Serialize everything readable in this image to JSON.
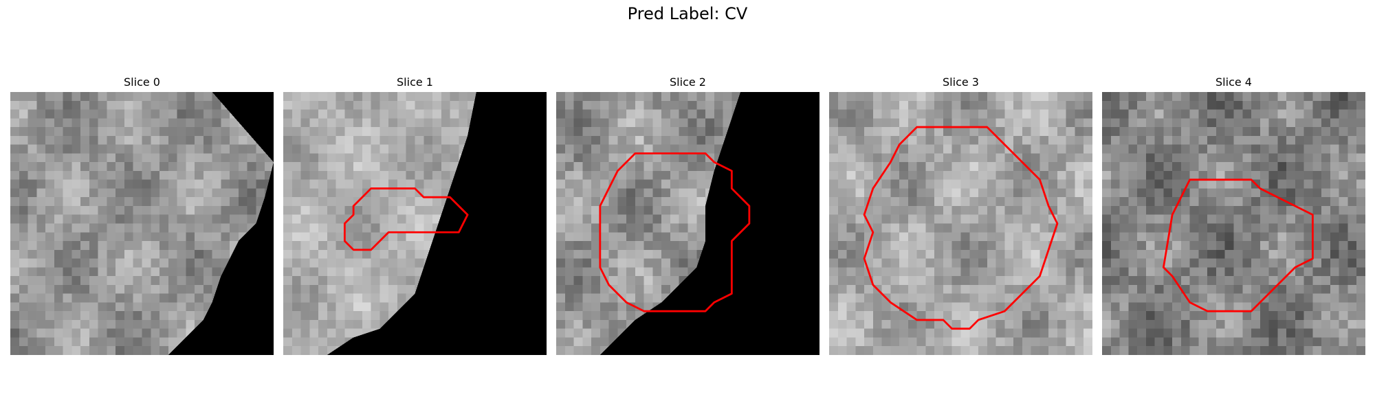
{
  "figure": {
    "title": "Pred Label: CV"
  },
  "panels": [
    {
      "title": "Slice 0",
      "texture_seed": 11,
      "brightness": 150,
      "contrast": 55,
      "black_region_image": [
        [
          23,
          0
        ],
        [
          30,
          0
        ],
        [
          30,
          30
        ],
        [
          18,
          30
        ],
        [
          20,
          28
        ],
        [
          22,
          26
        ],
        [
          23,
          24
        ],
        [
          24,
          21
        ],
        [
          25,
          19
        ],
        [
          26,
          17
        ],
        [
          28,
          15
        ],
        [
          29,
          12
        ],
        [
          30,
          8
        ]
      ],
      "contour": []
    },
    {
      "title": "Slice 1",
      "texture_seed": 23,
      "brightness": 175,
      "contrast": 45,
      "black_region_image": [
        [
          22,
          0
        ],
        [
          30,
          0
        ],
        [
          30,
          30
        ],
        [
          5,
          30
        ],
        [
          8,
          28
        ],
        [
          11,
          27
        ],
        [
          13,
          25
        ],
        [
          15,
          23
        ],
        [
          16,
          20
        ],
        [
          17,
          17
        ],
        [
          18,
          14
        ],
        [
          19,
          11
        ],
        [
          20,
          8
        ],
        [
          21,
          5
        ]
      ],
      "contour": [
        [
          10,
          11
        ],
        [
          15,
          11
        ],
        [
          16,
          12
        ],
        [
          19,
          12
        ],
        [
          20,
          13
        ],
        [
          21,
          14
        ],
        [
          20,
          16
        ],
        [
          12,
          16
        ],
        [
          11,
          17
        ],
        [
          10,
          18
        ],
        [
          8,
          18
        ],
        [
          7,
          17
        ],
        [
          7,
          15
        ],
        [
          8,
          14
        ],
        [
          8,
          13
        ],
        [
          9,
          12
        ]
      ]
    },
    {
      "title": "Slice 2",
      "texture_seed": 37,
      "brightness": 150,
      "contrast": 60,
      "black_region_image": [
        [
          21,
          0
        ],
        [
          30,
          0
        ],
        [
          30,
          30
        ],
        [
          5,
          30
        ],
        [
          7,
          28
        ],
        [
          9,
          26
        ],
        [
          12,
          24
        ],
        [
          14,
          22
        ],
        [
          16,
          20
        ],
        [
          17,
          17
        ],
        [
          17,
          13
        ],
        [
          18,
          9
        ],
        [
          19,
          6
        ],
        [
          20,
          3
        ]
      ],
      "contour": [
        [
          9,
          7
        ],
        [
          17,
          7
        ],
        [
          18,
          8
        ],
        [
          20,
          9
        ],
        [
          20,
          11
        ],
        [
          22,
          13
        ],
        [
          22,
          15
        ],
        [
          21,
          16
        ],
        [
          20,
          17
        ],
        [
          20,
          23
        ],
        [
          18,
          24
        ],
        [
          17,
          25
        ],
        [
          10,
          25
        ],
        [
          8,
          24
        ],
        [
          7,
          23
        ],
        [
          6,
          22
        ],
        [
          5,
          20
        ],
        [
          5,
          13
        ],
        [
          6,
          11
        ],
        [
          7,
          9
        ]
      ]
    },
    {
      "title": "Slice 3",
      "texture_seed": 51,
      "brightness": 165,
      "contrast": 55,
      "black_region_image": [],
      "contour": [
        [
          10,
          4
        ],
        [
          18,
          4
        ],
        [
          19,
          5
        ],
        [
          20,
          6
        ],
        [
          22,
          8
        ],
        [
          24,
          10
        ],
        [
          25,
          13
        ],
        [
          26,
          15
        ],
        [
          25,
          18
        ],
        [
          24,
          21
        ],
        [
          22,
          23
        ],
        [
          20,
          25
        ],
        [
          17,
          26
        ],
        [
          16,
          27
        ],
        [
          14,
          27
        ],
        [
          13,
          26
        ],
        [
          10,
          26
        ],
        [
          7,
          24
        ],
        [
          5,
          22
        ],
        [
          4,
          19
        ],
        [
          5,
          16
        ],
        [
          4,
          14
        ],
        [
          5,
          11
        ],
        [
          7,
          8
        ],
        [
          8,
          6
        ]
      ]
    },
    {
      "title": "Slice 4",
      "texture_seed": 67,
      "brightness": 130,
      "contrast": 60,
      "black_region_image": [],
      "contour": [
        [
          10,
          10
        ],
        [
          17,
          10
        ],
        [
          18,
          11
        ],
        [
          20,
          12
        ],
        [
          22,
          13
        ],
        [
          24,
          14
        ],
        [
          24,
          19
        ],
        [
          22,
          20
        ],
        [
          21,
          21
        ],
        [
          19,
          23
        ],
        [
          17,
          25
        ],
        [
          15,
          25
        ],
        [
          14,
          25
        ],
        [
          12,
          25
        ],
        [
          10,
          24
        ],
        [
          8,
          21
        ],
        [
          7,
          20
        ],
        [
          8,
          14
        ],
        [
          9,
          12
        ]
      ]
    }
  ],
  "colors": {
    "contour": "#ff0000",
    "black_region": "#000000"
  }
}
